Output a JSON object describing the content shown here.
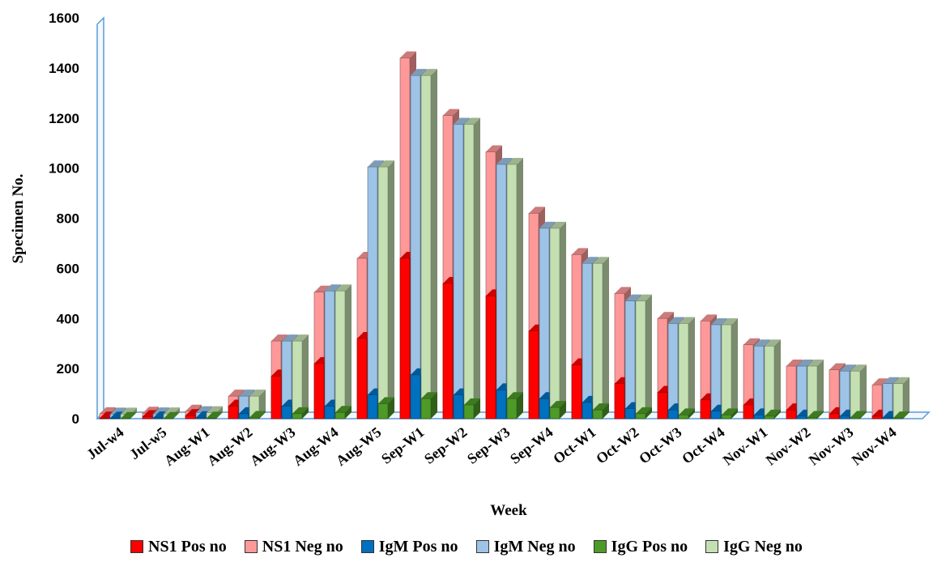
{
  "chart_data": {
    "type": "bar",
    "title": "",
    "xlabel": "Week",
    "ylabel": "Specimen No.",
    "ylim": [
      0,
      1600
    ],
    "yticks": [
      "0",
      "200",
      "400",
      "600",
      "800",
      "1000",
      "1200",
      "1400",
      "1600"
    ],
    "categories": [
      "Jul-w4",
      "Jul-w5",
      "Aug-W1",
      "Aug-W2",
      "Aug-W3",
      "Aug-W4",
      "Aug-W5",
      "Sep-W1",
      "Sep-W2",
      "Sep-W3",
      "Sep-W4",
      "Oct-W1",
      "Oct-W2",
      "Oct-W3",
      "Oct-W4",
      "Nov-W1",
      "Nov-W2",
      "Nov-W3",
      "Nov-W4"
    ],
    "legend_position": "bottom",
    "series": [
      {
        "name": "NS1 Pos no",
        "color": "#ff0000",
        "group": "NS1",
        "values": [
          2,
          8,
          12,
          50,
          170,
          220,
          320,
          640,
          540,
          490,
          350,
          215,
          140,
          105,
          75,
          55,
          35,
          20,
          10
        ]
      },
      {
        "name": "NS1 Neg no",
        "color": "#ff9999",
        "group": "NS1",
        "values": [
          18,
          14,
          18,
          40,
          140,
          285,
          320,
          800,
          670,
          575,
          470,
          440,
          360,
          295,
          315,
          240,
          175,
          175,
          125
        ]
      },
      {
        "name": "IgM Pos no",
        "color": "#0070c0",
        "group": "IgM",
        "values": [
          2,
          3,
          4,
          20,
          50,
          50,
          95,
          175,
          95,
          115,
          80,
          65,
          40,
          35,
          30,
          15,
          10,
          10,
          5
        ]
      },
      {
        "name": "IgM Neg no",
        "color": "#9dc3e6",
        "group": "IgM",
        "values": [
          16,
          16,
          20,
          70,
          260,
          460,
          910,
          1195,
          1080,
          900,
          680,
          555,
          430,
          345,
          345,
          275,
          200,
          180,
          135
        ]
      },
      {
        "name": "IgG Pos no",
        "color": "#4e9a28",
        "group": "IgG",
        "values": [
          1,
          1,
          2,
          5,
          20,
          25,
          60,
          80,
          55,
          80,
          45,
          35,
          20,
          15,
          15,
          10,
          5,
          5,
          3
        ]
      },
      {
        "name": "IgG Neg no",
        "color": "#c4e0b2",
        "group": "IgG",
        "values": [
          17,
          18,
          22,
          85,
          290,
          485,
          945,
          1290,
          1120,
          935,
          715,
          585,
          450,
          365,
          360,
          280,
          205,
          185,
          137
        ]
      }
    ]
  }
}
